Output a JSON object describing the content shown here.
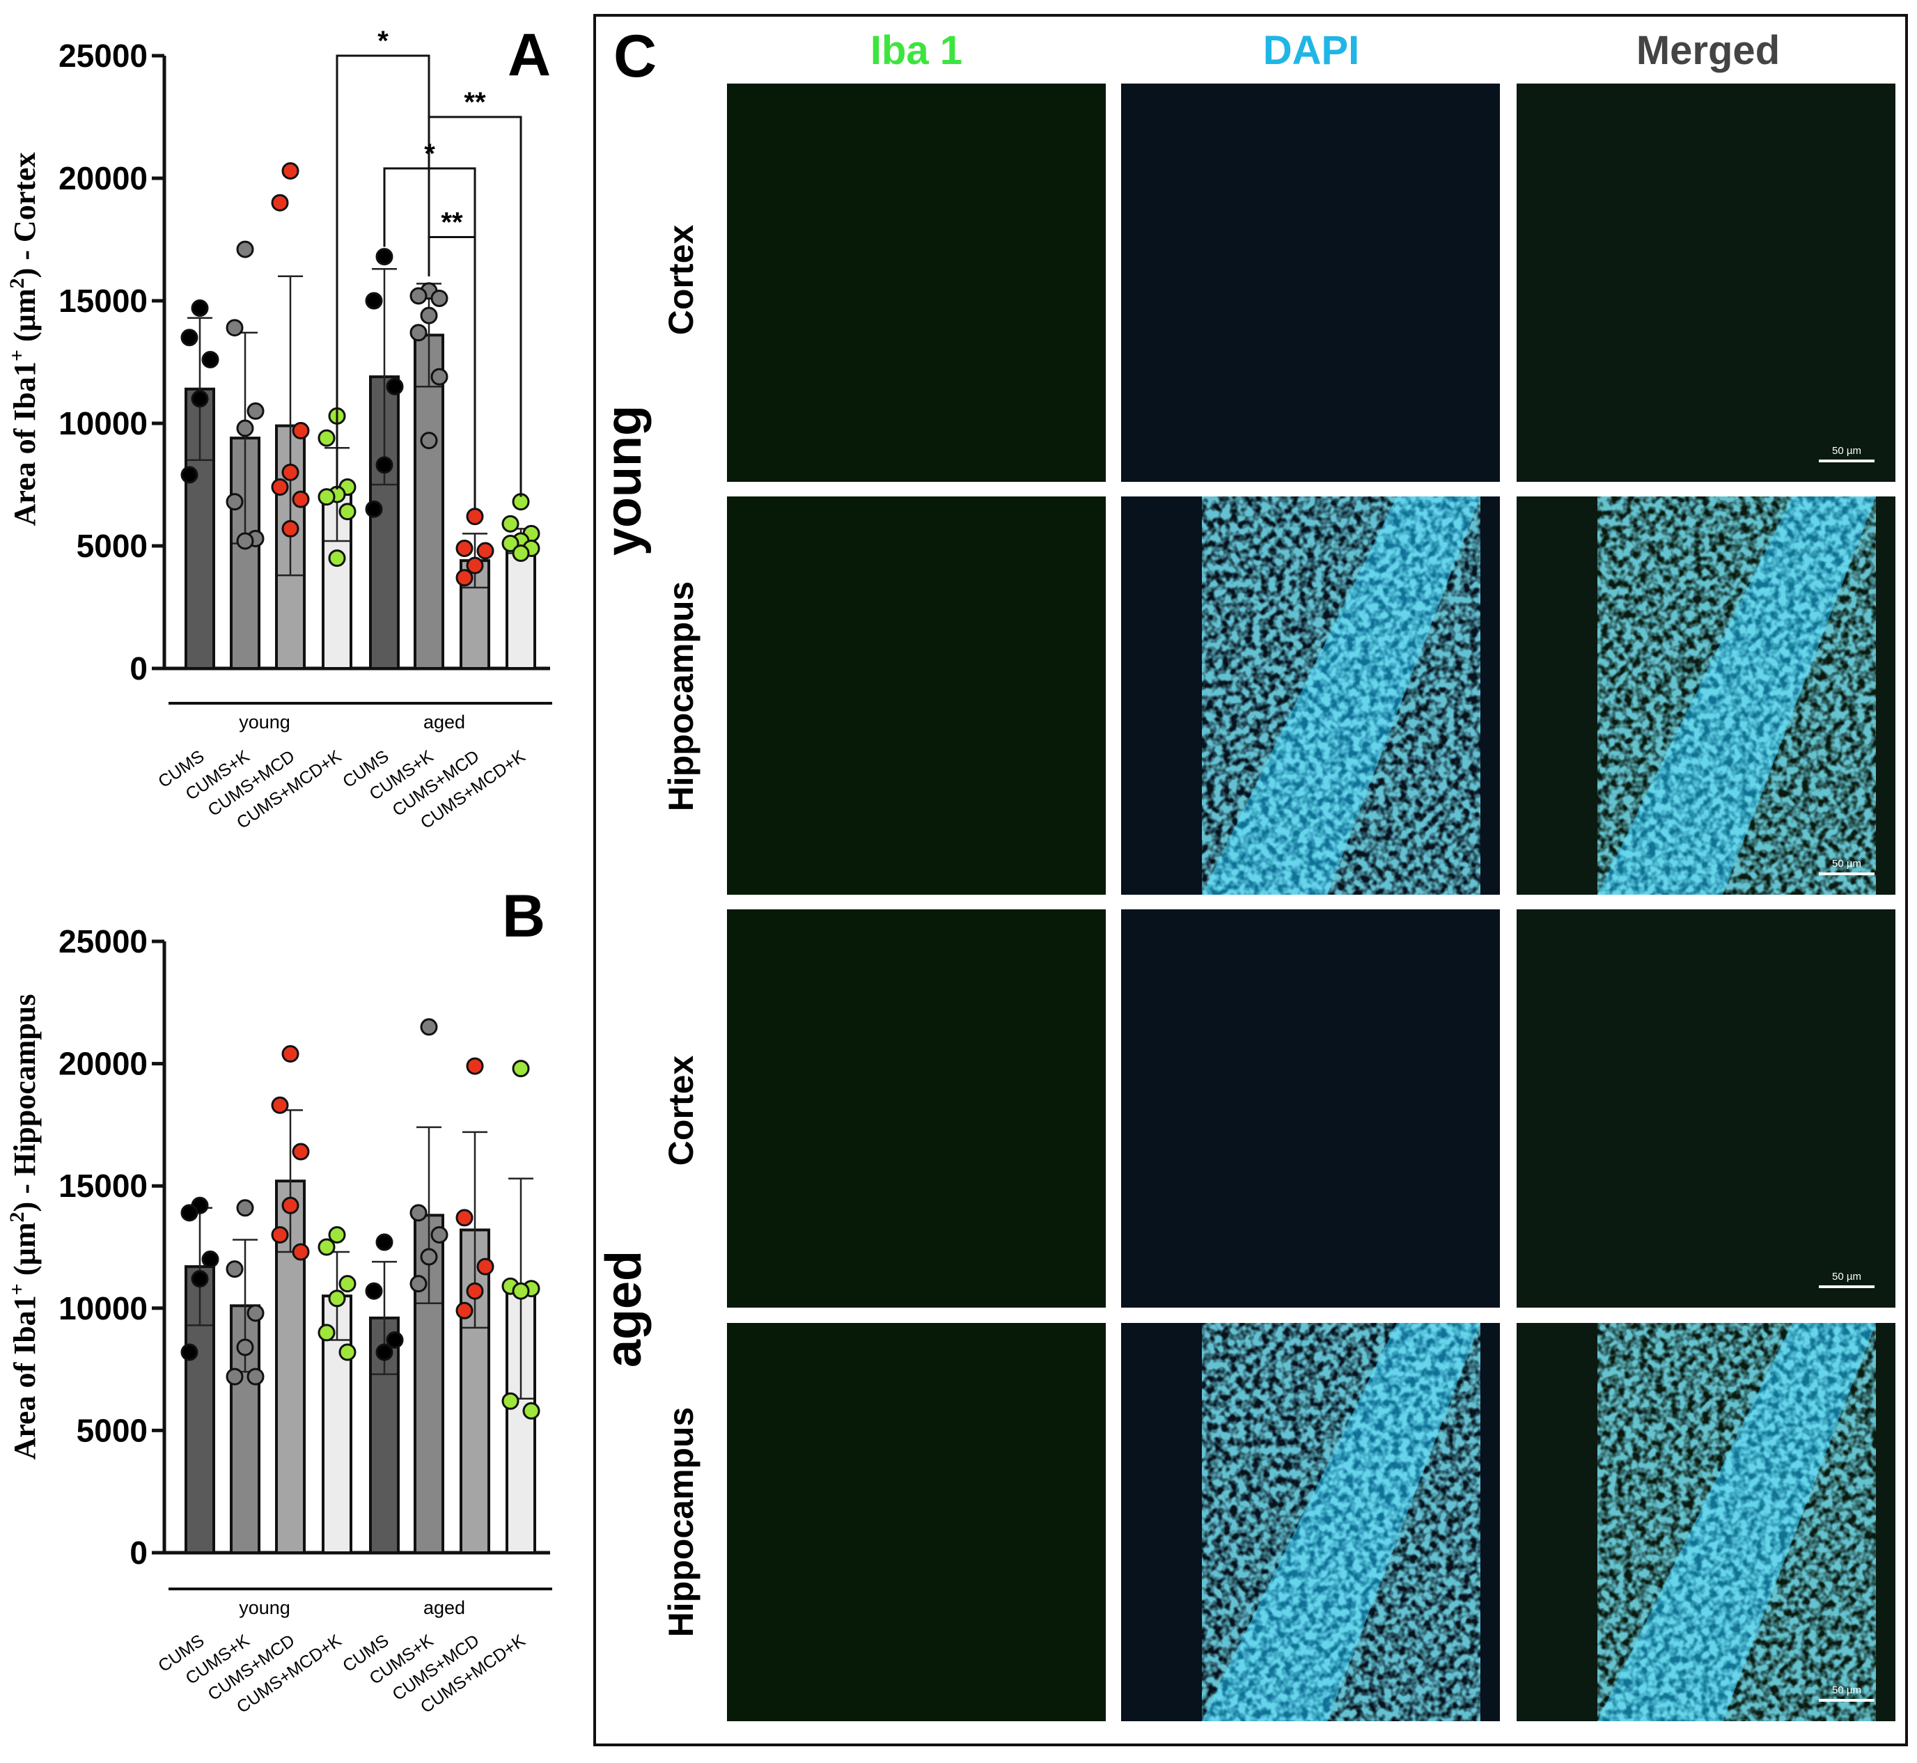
{
  "panel_a": {
    "letter": "A",
    "ylabel_prefix": "Area of Iba1",
    "ylabel_sup_plus": "+",
    "ylabel_unit_open": " (µm",
    "ylabel_sup_two": "2",
    "ylabel_suffix": ") - Cortex",
    "group_young": "young",
    "group_aged": "aged",
    "sig": {
      "s1": "*",
      "s2": "**",
      "s3": "*",
      "s4": "**"
    }
  },
  "panel_b": {
    "letter": "B",
    "ylabel_prefix": "Area of Iba1",
    "ylabel_sup_plus": "+",
    "ylabel_unit_open": " (µm",
    "ylabel_sup_two": "2",
    "ylabel_suffix": ") - Hippocampus",
    "group_young": "young",
    "group_aged": "aged"
  },
  "panel_c": {
    "letter": "C",
    "col_headers": [
      "Iba 1",
      "DAPI",
      "Merged"
    ],
    "group_young": "young",
    "group_aged": "aged",
    "row_labels": [
      "Cortex",
      "Hippocampus",
      "Cortex",
      "Hippocampus"
    ],
    "scale_bar": "50 µm",
    "colors": {
      "iba": "#3ee43e",
      "dapi": "#1fb6e6",
      "merged": "#444444"
    }
  },
  "chart_data": [
    {
      "type": "bar",
      "ylabel": "Area of Iba1+ (µm2) - Cortex",
      "ylim": [
        0,
        25000
      ],
      "yticks": [
        "0",
        "5000",
        "10000",
        "15000",
        "20000",
        "25000"
      ],
      "categories": [
        "CUMS",
        "CUMS+K",
        "CUMS+MCD",
        "CUMS+MCD+K",
        "CUMS",
        "CUMS+K",
        "CUMS+MCD",
        "CUMS+MCD+K"
      ],
      "groups": [
        "young",
        "young",
        "young",
        "young",
        "aged",
        "aged",
        "aged",
        "aged"
      ],
      "values": [
        11400,
        9400,
        9900,
        7100,
        11900,
        13600,
        4400,
        5200
      ],
      "errors": [
        2900,
        4300,
        6100,
        1900,
        4400,
        2100,
        1100,
        500
      ],
      "points": [
        [
          14700,
          13500,
          12600,
          11000,
          7900
        ],
        [
          17100,
          13900,
          10500,
          9800,
          6800,
          5300,
          5200
        ],
        [
          20300,
          19000,
          9700,
          8000,
          7400,
          6900,
          5700
        ],
        [
          10300,
          9400,
          7400,
          7100,
          7000,
          6400,
          4500
        ],
        [
          16800,
          15000,
          11500,
          8300,
          6500
        ],
        [
          15400,
          15200,
          15100,
          14400,
          13700,
          11900,
          9300
        ],
        [
          6200,
          4900,
          4800,
          4200,
          3700
        ],
        [
          6800,
          5900,
          5500,
          5200,
          5100,
          4900,
          4700
        ]
      ],
      "bar_colors": [
        "#5a5a5a",
        "#878787",
        "#a5a5a5",
        "#ececec",
        "#5a5a5a",
        "#878787",
        "#a5a5a5",
        "#ececec"
      ],
      "point_colors": [
        "#000000",
        "#7d7d7d",
        "#e8331c",
        "#9ee63a",
        "#000000",
        "#7d7d7d",
        "#e8331c",
        "#9ee63a"
      ],
      "significance": [
        {
          "from": 3,
          "to": 5,
          "label": "*"
        },
        {
          "from": 5,
          "to": 7,
          "label": "**"
        },
        {
          "from": 4,
          "to": 6,
          "label": "*"
        },
        {
          "from": 5,
          "to": 6,
          "label": "**"
        }
      ]
    },
    {
      "type": "bar",
      "ylabel": "Area of Iba1+ (µm2) - Hippocampus",
      "ylim": [
        0,
        25000
      ],
      "yticks": [
        "0",
        "5000",
        "10000",
        "15000",
        "20000",
        "25000"
      ],
      "categories": [
        "CUMS",
        "CUMS+K",
        "CUMS+MCD",
        "CUMS+MCD+K",
        "CUMS",
        "CUMS+K",
        "CUMS+MCD",
        "CUMS+MCD+K"
      ],
      "groups": [
        "young",
        "young",
        "young",
        "young",
        "aged",
        "aged",
        "aged",
        "aged"
      ],
      "values": [
        11700,
        10100,
        15200,
        10500,
        9600,
        13800,
        13200,
        10800
      ],
      "errors": [
        2400,
        2700,
        2900,
        1800,
        2300,
        3600,
        4000,
        4500
      ],
      "points": [
        [
          14200,
          13900,
          12000,
          11200,
          8200
        ],
        [
          14100,
          11600,
          9800,
          8400,
          7200,
          7200
        ],
        [
          20400,
          18300,
          16400,
          14200,
          13000,
          12300
        ],
        [
          13000,
          12500,
          11000,
          10400,
          9000,
          8200
        ],
        [
          12700,
          10700,
          8700,
          8200
        ],
        [
          21500,
          13900,
          13000,
          12100,
          11000
        ],
        [
          19900,
          13700,
          11700,
          10700,
          9900
        ],
        [
          19800,
          10900,
          10800,
          10700,
          6200,
          5800
        ]
      ],
      "bar_colors": [
        "#5a5a5a",
        "#878787",
        "#a5a5a5",
        "#ececec",
        "#5a5a5a",
        "#878787",
        "#a5a5a5",
        "#ececec"
      ],
      "point_colors": [
        "#000000",
        "#7d7d7d",
        "#e8331c",
        "#9ee63a",
        "#000000",
        "#7d7d7d",
        "#e8331c",
        "#9ee63a"
      ]
    }
  ]
}
